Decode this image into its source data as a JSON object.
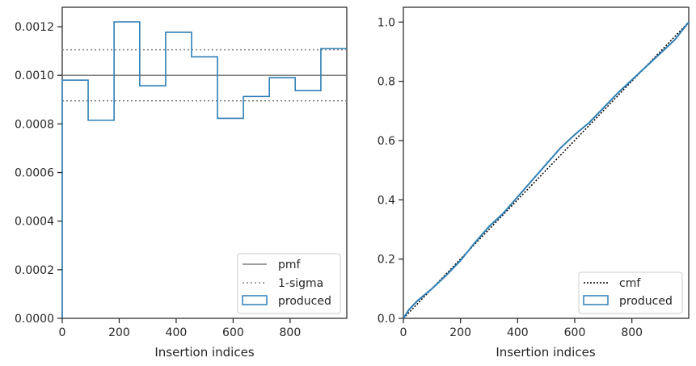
{
  "colors": {
    "produced": "#2f7fb5",
    "pmf": "#808080",
    "sigma": "#808080",
    "cmf": "#000000",
    "axes": "#262626"
  },
  "chart_data": [
    {
      "type": "histogram",
      "xlabel": "Insertion indices",
      "ylabel": "",
      "xlim": [
        0,
        999
      ],
      "ylim": [
        0,
        0.00128
      ],
      "x_ticks": [
        0,
        200,
        400,
        600,
        800
      ],
      "x_tick_labels": [
        "0",
        "200",
        "400",
        "600",
        "800"
      ],
      "y_ticks": [
        0,
        0.0002,
        0.0004,
        0.0006,
        0.0008,
        0.001,
        0.0012
      ],
      "y_tick_labels": [
        "0.0000",
        "0.0002",
        "0.0004",
        "0.0006",
        "0.0008",
        "0.0010",
        "0.0012"
      ],
      "grid": false,
      "legend_position": "lower-right",
      "bin_edges": [
        0,
        91,
        182,
        272,
        363,
        454,
        545,
        636,
        727,
        818,
        908,
        999
      ],
      "produced": [
        0.00098,
        0.000815,
        0.00122,
        0.000957,
        0.001177,
        0.001076,
        0.000823,
        0.000913,
        0.00099,
        0.000937,
        0.00111
      ],
      "pmf": 0.001,
      "sigma_upper": 0.001105,
      "sigma_lower": 0.000895,
      "legend": [
        "pmf",
        "1-sigma",
        "produced"
      ]
    },
    {
      "type": "line",
      "xlabel": "Insertion indices",
      "ylabel": "",
      "xlim": [
        0,
        999
      ],
      "ylim": [
        0,
        1.05
      ],
      "x_ticks": [
        0,
        200,
        400,
        600,
        800
      ],
      "x_tick_labels": [
        "0",
        "200",
        "400",
        "600",
        "800"
      ],
      "y_ticks": [
        0,
        0.2,
        0.4,
        0.6,
        0.8,
        1.0
      ],
      "y_tick_labels": [
        "0.0",
        "0.2",
        "0.4",
        "0.6",
        "0.8",
        "1.0"
      ],
      "grid": false,
      "legend_position": "lower-right",
      "cmf": {
        "x": [
          0,
          999
        ],
        "y": [
          0,
          1.0
        ]
      },
      "produced": {
        "x": [
          0,
          20,
          50,
          100,
          150,
          200,
          250,
          300,
          350,
          400,
          450,
          500,
          550,
          600,
          650,
          700,
          750,
          800,
          850,
          900,
          950,
          999
        ],
        "y": [
          0,
          0.03,
          0.06,
          0.1,
          0.145,
          0.195,
          0.255,
          0.31,
          0.355,
          0.41,
          0.465,
          0.52,
          0.575,
          0.62,
          0.66,
          0.71,
          0.76,
          0.805,
          0.85,
          0.895,
          0.94,
          1.0
        ]
      },
      "legend": [
        "cmf",
        "produced"
      ]
    }
  ]
}
